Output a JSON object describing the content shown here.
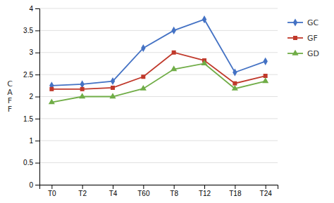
{
  "chart_data": {
    "type": "line",
    "y_label": "C\nA\nF\nF",
    "categories": [
      "T0",
      "T2",
      "T4",
      "T60",
      "T8",
      "T12",
      "T18",
      "T24"
    ],
    "series": [
      {
        "name": "GC",
        "color": "#4472C4",
        "marker": "diamond",
        "values": [
          2.25,
          2.28,
          2.35,
          3.1,
          3.5,
          3.75,
          2.55,
          2.8
        ]
      },
      {
        "name": "GF",
        "color": "#C0392B",
        "marker": "square",
        "values": [
          2.17,
          2.17,
          2.2,
          2.45,
          3.0,
          2.82,
          2.3,
          2.47
        ]
      },
      {
        "name": "GD",
        "color": "#70AD47",
        "marker": "triangle",
        "values": [
          1.87,
          2.0,
          2.0,
          2.18,
          2.62,
          2.75,
          2.18,
          2.35
        ]
      }
    ],
    "ylim": [
      0,
      4
    ],
    "yticks": [
      0,
      0.5,
      1,
      1.5,
      2,
      2.5,
      3,
      3.5,
      4
    ],
    "grid": true,
    "legend": "right"
  }
}
